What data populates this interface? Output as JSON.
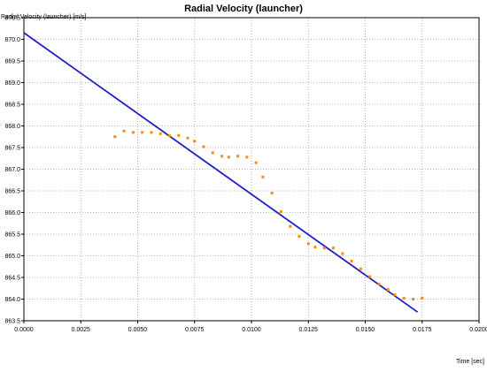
{
  "chart_data": {
    "type": "line",
    "title": "Radial Velocity (launcher)",
    "ylabel": "Radial Velocity (launcher) [m/s]",
    "xlabel": "Time [sec]",
    "xlim": [
      0.0,
      0.02
    ],
    "ylim": [
      863.5,
      870.5
    ],
    "grid": true,
    "x_ticks": [
      "0.0000",
      "0.0025",
      "0.0050",
      "0.0075",
      "0.0100",
      "0.0125",
      "0.0150",
      "0.0175",
      "0.0200"
    ],
    "y_ticks": [
      "870.5",
      "870.0",
      "869.5",
      "869.0",
      "868.5",
      "868.0",
      "867.5",
      "867.0",
      "866.5",
      "866.0",
      "865.5",
      "865.0",
      "864.5",
      "864.0",
      "863.5"
    ],
    "series": [
      {
        "kind": "line",
        "color": "#1f1fc8",
        "x": [
          0.0,
          0.0173
        ],
        "y": [
          870.15,
          863.7
        ]
      },
      {
        "kind": "scatter",
        "color": "#ff8c00",
        "x": [
          0.004,
          0.0044,
          0.0048,
          0.0052,
          0.0056,
          0.006,
          0.0064,
          0.0068,
          0.0072,
          0.0075,
          0.0079,
          0.0083,
          0.0087,
          0.009,
          0.0094,
          0.0098,
          0.0102,
          0.0105,
          0.0109,
          0.0113,
          0.0117,
          0.0121,
          0.0125,
          0.0128,
          0.0132,
          0.0136,
          0.014,
          0.0144,
          0.0148,
          0.0152,
          0.0156,
          0.016,
          0.0163,
          0.0167,
          0.0171,
          0.0175
        ],
        "y": [
          867.75,
          867.88,
          867.85,
          867.85,
          867.85,
          867.82,
          867.78,
          867.78,
          867.72,
          867.65,
          867.52,
          867.38,
          867.3,
          867.28,
          867.3,
          867.28,
          867.15,
          866.82,
          866.45,
          866.02,
          865.68,
          865.45,
          865.28,
          865.2,
          865.18,
          865.18,
          865.05,
          864.88,
          864.7,
          864.52,
          864.35,
          864.22,
          864.1,
          864.02,
          864.0,
          864.02
        ]
      }
    ]
  }
}
